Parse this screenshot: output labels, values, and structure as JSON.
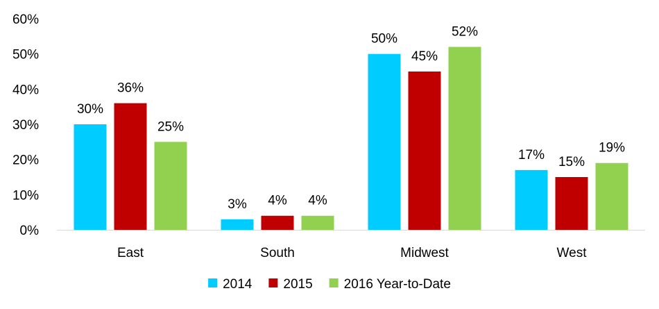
{
  "chart_data": {
    "type": "bar",
    "title": "",
    "xlabel": "",
    "ylabel": "",
    "categories": [
      "East",
      "South",
      "Midwest",
      "West"
    ],
    "series": [
      {
        "name": "2014",
        "values": [
          30,
          3,
          50,
          17
        ],
        "labels": [
          "30%",
          "3%",
          "50%",
          "17%"
        ],
        "color": "#00CCFF"
      },
      {
        "name": "2015",
        "values": [
          36,
          4,
          45,
          15
        ],
        "labels": [
          "36%",
          "4%",
          "45%",
          "15%"
        ],
        "color": "#C00000"
      },
      {
        "name": "2016 Year-to-Date",
        "values": [
          25,
          4,
          52,
          19
        ],
        "labels": [
          "25%",
          "4%",
          "52%",
          "19%"
        ],
        "color": "#92D050"
      }
    ],
    "ylim": [
      0,
      60
    ],
    "yticks": [
      0,
      10,
      20,
      30,
      40,
      50,
      60
    ],
    "ytick_labels": [
      "0%",
      "10%",
      "20%",
      "30%",
      "40%",
      "50%",
      "60%"
    ],
    "grid": false,
    "legend_position": "bottom"
  }
}
